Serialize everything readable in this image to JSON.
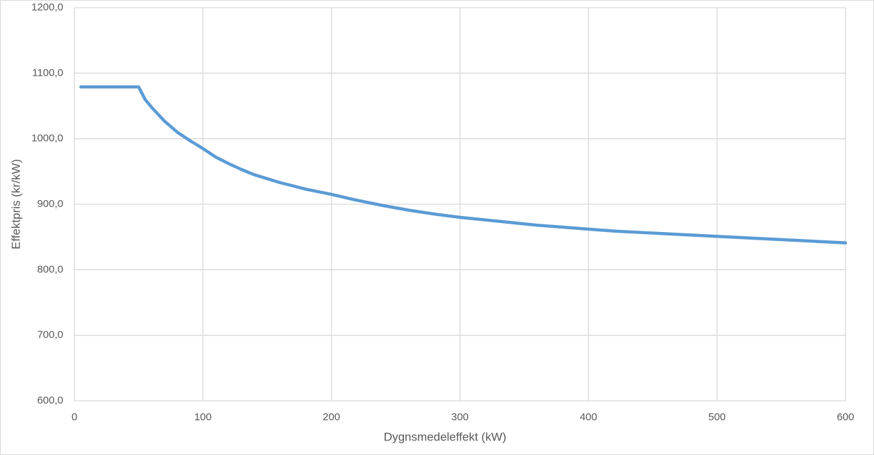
{
  "chart_data": {
    "type": "line",
    "x_label": "Dygnsmedeleffekt (kW)",
    "y_label": "Effektpris (kr/kW)",
    "x": [
      5,
      50,
      55,
      60,
      70,
      80,
      90,
      100,
      110,
      120,
      130,
      140,
      150,
      160,
      170,
      180,
      190,
      200,
      220,
      240,
      260,
      280,
      300,
      320,
      340,
      360,
      380,
      400,
      420,
      440,
      460,
      480,
      500,
      520,
      540,
      560,
      580,
      600
    ],
    "series": [
      {
        "color": "#5b9bd5",
        "values": [
          1079,
          1079,
          1060,
          1048,
          1027,
          1010,
          997,
          985,
          972,
          962,
          953,
          945,
          939,
          933,
          928,
          923,
          919,
          915,
          906,
          898,
          891,
          885,
          880,
          876,
          872,
          868,
          865,
          862,
          859,
          857,
          855,
          853,
          851,
          849,
          847,
          845,
          843,
          841
        ]
      }
    ],
    "xlim": [
      0,
      600
    ],
    "xticks": [
      0,
      100,
      200,
      300,
      400,
      500,
      600
    ],
    "ylim": [
      600,
      1200
    ],
    "yticks": [
      {
        "value": 600,
        "label": "600,0"
      },
      {
        "value": 700,
        "label": "700,0"
      },
      {
        "value": 800,
        "label": "800,0"
      },
      {
        "value": 900,
        "label": "900,0"
      },
      {
        "value": 1000,
        "label": "1000,0"
      },
      {
        "value": 1100,
        "label": "1100,0"
      },
      {
        "value": 1200,
        "label": "1200,0"
      }
    ],
    "grid": true
  }
}
